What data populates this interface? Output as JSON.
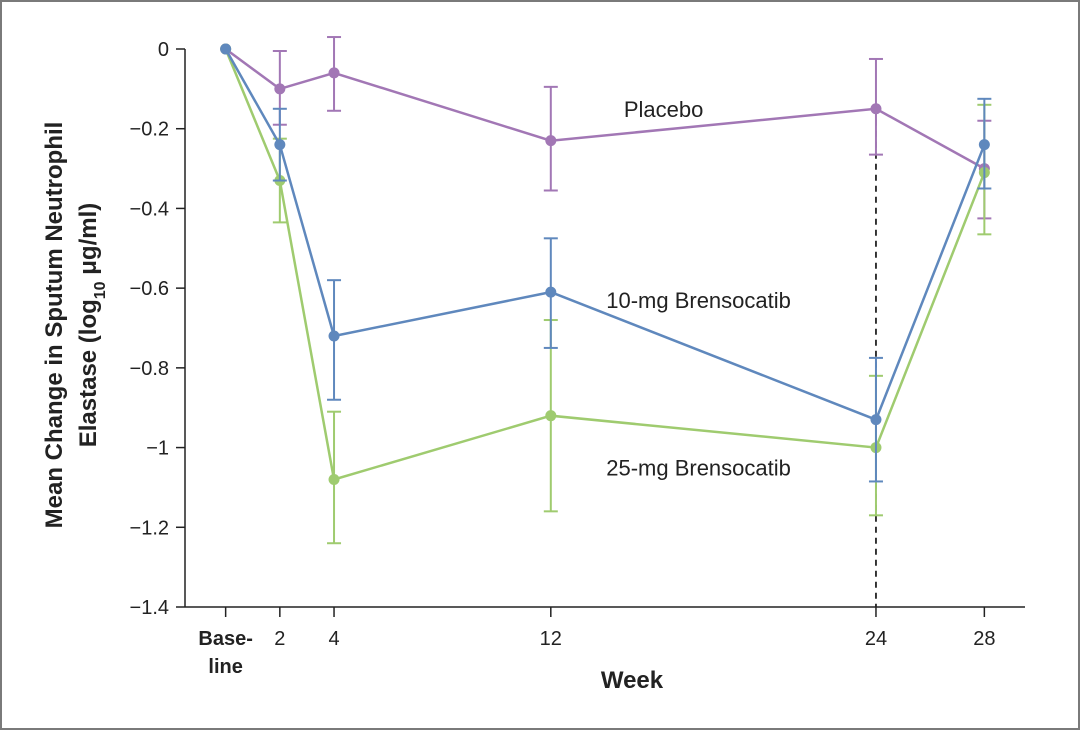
{
  "chart_data": {
    "type": "line",
    "xlabel": "Week",
    "ylabel": "Mean Change in Sputum Neutrophil Elastase (log₁₀ μg/ml)",
    "ylabel_line1": "Mean Change in Sputum Neutrophil",
    "ylabel_line2_pre": "Elastase (log",
    "ylabel_line2_sub": "10",
    "ylabel_line2_post": " μg/ml)",
    "x": [
      0,
      2,
      4,
      12,
      24,
      28
    ],
    "x_tick_labels": [
      [
        "Base-",
        "line"
      ],
      [
        "2"
      ],
      [
        "4"
      ],
      [
        "12"
      ],
      [
        "24"
      ],
      [
        "28"
      ]
    ],
    "xlim": [
      -1.5,
      29.5
    ],
    "ylim": [
      -1.4,
      0
    ],
    "y_ticks": [
      0,
      -0.2,
      -0.4,
      -0.6,
      -0.8,
      -1,
      -1.2,
      -1.4
    ],
    "y_tick_labels": [
      "0",
      "−0.2",
      "−0.4",
      "−0.6",
      "−0.8",
      "−1",
      "−1.2",
      "−1.4"
    ],
    "grid": false,
    "reference_line": {
      "x": 24,
      "style": "dashed"
    },
    "series": [
      {
        "name": "Placebo",
        "color": "#a277b5",
        "values": [
          0,
          -0.1,
          -0.06,
          -0.23,
          -0.15,
          -0.3
        ],
        "error_upper": [
          null,
          -0.005,
          0.03,
          -0.095,
          -0.025,
          -0.18
        ],
        "error_lower": [
          null,
          -0.19,
          -0.155,
          -0.355,
          -0.265,
          -0.425
        ]
      },
      {
        "name": "10-mg Brensocatib",
        "color": "#5f88bd",
        "values": [
          0,
          -0.24,
          -0.72,
          -0.61,
          -0.93,
          -0.24
        ],
        "error_upper": [
          null,
          -0.15,
          -0.58,
          -0.475,
          -0.775,
          -0.125
        ],
        "error_lower": [
          null,
          -0.33,
          -0.88,
          -0.75,
          -1.085,
          -0.35
        ]
      },
      {
        "name": "25-mg Brensocatib",
        "color": "#9fcb6f",
        "values": [
          0,
          -0.33,
          -1.08,
          -0.92,
          -1.0,
          -0.31
        ],
        "error_upper": [
          null,
          -0.225,
          -0.91,
          -0.68,
          -0.82,
          -0.14
        ],
        "error_lower": [
          null,
          -0.435,
          -1.24,
          -1.16,
          -1.17,
          -0.465
        ]
      }
    ]
  }
}
